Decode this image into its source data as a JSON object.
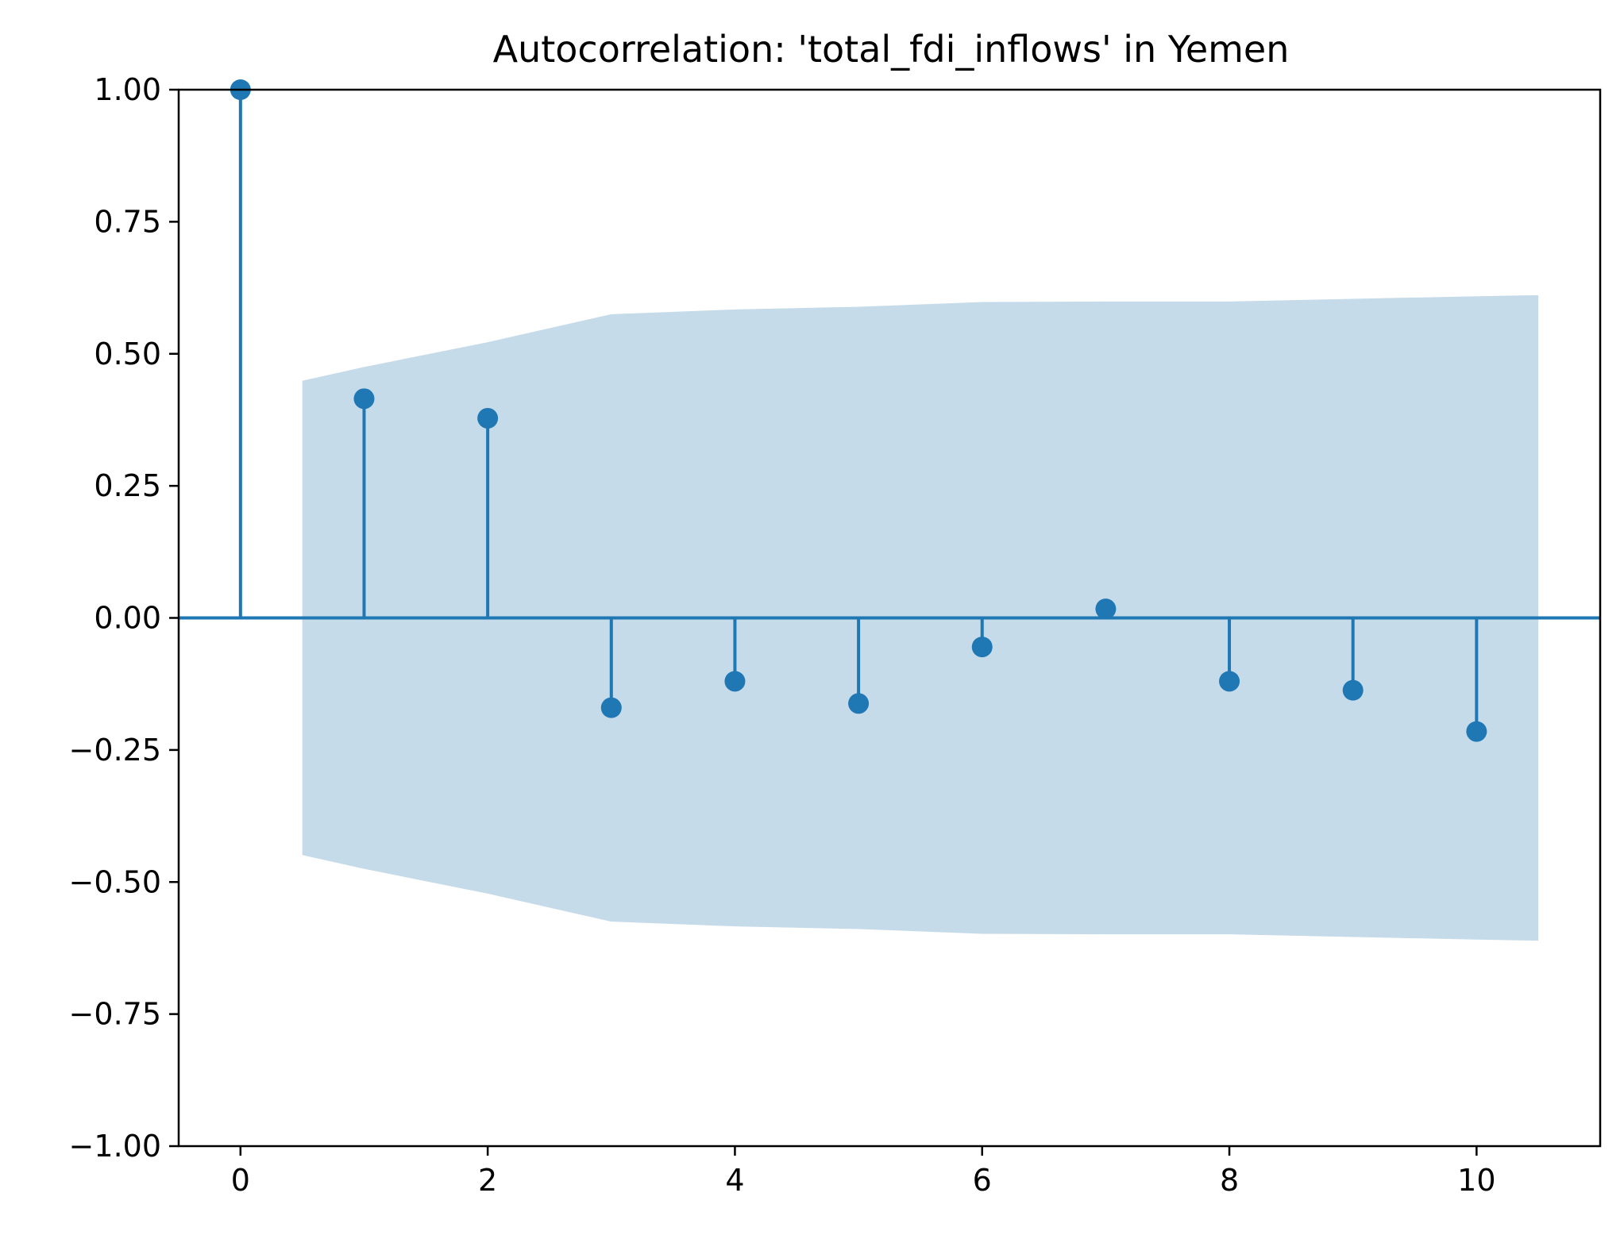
{
  "chart_data": {
    "type": "stem",
    "title": "Autocorrelation: 'total_fdi_inflows' in Yemen",
    "xlabel": "",
    "ylabel": "",
    "xlim": [
      -0.5,
      11
    ],
    "ylim": [
      -1.0,
      1.0
    ],
    "x_ticks": [
      0,
      2,
      4,
      6,
      8,
      10
    ],
    "x_tick_labels": [
      "0",
      "2",
      "4",
      "6",
      "8",
      "10"
    ],
    "y_ticks": [
      1.0,
      0.75,
      0.5,
      0.25,
      0.0,
      -0.25,
      -0.5,
      -0.75,
      -1.0
    ],
    "y_tick_labels": [
      "1.00",
      "0.75",
      "0.50",
      "0.25",
      "0.00",
      "−0.25",
      "−0.50",
      "−0.75",
      "−1.00"
    ],
    "grid": false,
    "lags": [
      0,
      1,
      2,
      3,
      4,
      5,
      6,
      7,
      8,
      9,
      10
    ],
    "acf": [
      1.0,
      0.415,
      0.378,
      -0.17,
      -0.12,
      -0.162,
      -0.055,
      0.017,
      -0.12,
      -0.137,
      -0.215
    ],
    "confidence_band": {
      "x": [
        0.5,
        1,
        2,
        3,
        4,
        5,
        6,
        7,
        8,
        9,
        10,
        10.5
      ],
      "upper": [
        0.449,
        0.475,
        0.522,
        0.575,
        0.584,
        0.589,
        0.598,
        0.599,
        0.599,
        0.604,
        0.609,
        0.611
      ],
      "lower": [
        -0.449,
        -0.475,
        -0.522,
        -0.575,
        -0.584,
        -0.589,
        -0.598,
        -0.599,
        -0.599,
        -0.604,
        -0.609,
        -0.611
      ]
    },
    "colors": {
      "stem": "#1f77b4",
      "band": "#c6dbea",
      "axis": "#000000"
    }
  }
}
